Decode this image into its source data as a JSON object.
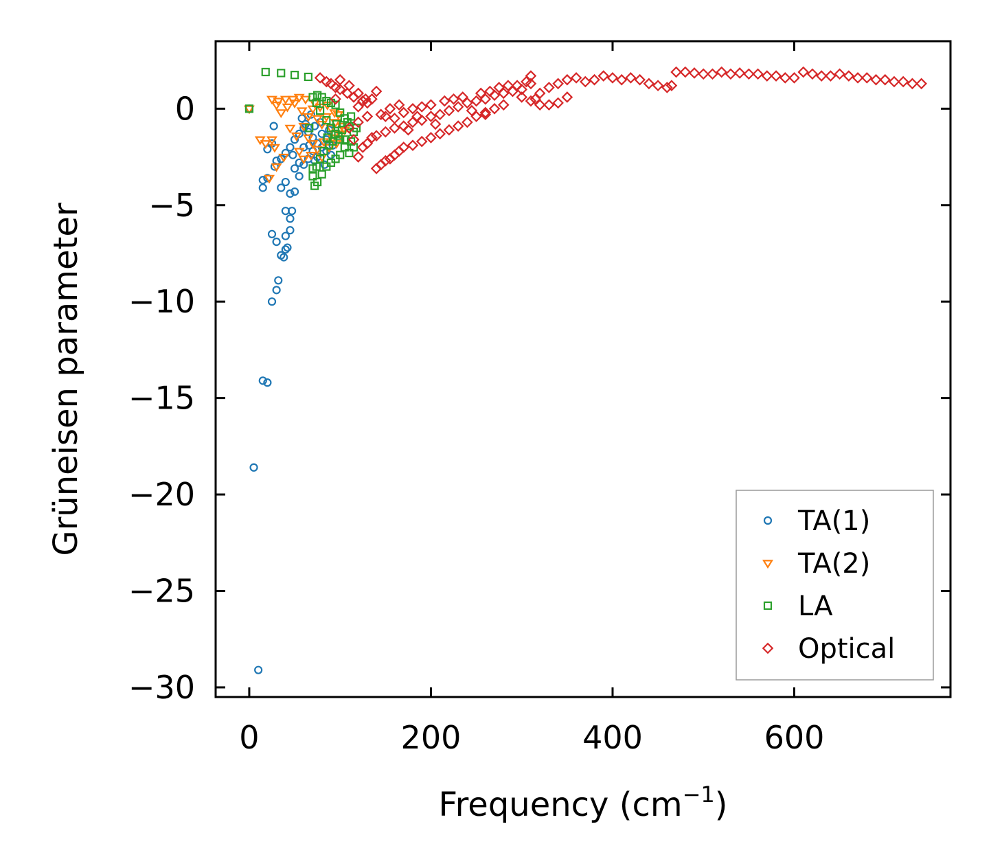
{
  "chart_data": {
    "type": "scatter",
    "title": "",
    "xlabel": "Frequency (cm",
    "xlabel_sup": "−1",
    "xlabel_end": ")",
    "ylabel": "Grüneisen parameter",
    "xlim": [
      -37,
      772
    ],
    "ylim": [
      -30.5,
      3.5
    ],
    "x_ticks": [
      0,
      200,
      400,
      600
    ],
    "x_tick_labels": [
      "0",
      "200",
      "400",
      "600"
    ],
    "y_ticks": [
      0,
      -5,
      -10,
      -15,
      -20,
      -25,
      -30
    ],
    "y_tick_labels": [
      "0",
      "−5",
      "−10",
      "−15",
      "−20",
      "−25",
      "−30"
    ],
    "legend_position": "bottom-right",
    "series": [
      {
        "name": "TA(1)",
        "marker": "circle",
        "color": "#1f77b4",
        "points": [
          [
            0,
            0
          ],
          [
            5,
            -18.6
          ],
          [
            10,
            -29.1
          ],
          [
            15,
            -14.1
          ],
          [
            20,
            -14.2
          ],
          [
            25,
            -10.0
          ],
          [
            30,
            -9.4
          ],
          [
            32,
            -8.9
          ],
          [
            25,
            -6.5
          ],
          [
            30,
            -6.9
          ],
          [
            35,
            -7.6
          ],
          [
            38,
            -7.7
          ],
          [
            40,
            -7.3
          ],
          [
            42,
            -7.2
          ],
          [
            40,
            -6.6
          ],
          [
            45,
            -6.3
          ],
          [
            47,
            -5.3
          ],
          [
            40,
            -5.3
          ],
          [
            45,
            -5.7
          ],
          [
            15,
            -4.1
          ],
          [
            15,
            -3.7
          ],
          [
            20,
            -3.6
          ],
          [
            28,
            -3.0
          ],
          [
            30,
            -2.7
          ],
          [
            35,
            -4.1
          ],
          [
            40,
            -3.8
          ],
          [
            45,
            -4.4
          ],
          [
            50,
            -4.3
          ],
          [
            55,
            -3.5
          ],
          [
            20,
            -2.1
          ],
          [
            25,
            -1.8
          ],
          [
            27,
            -0.9
          ],
          [
            35,
            -2.6
          ],
          [
            40,
            -2.3
          ],
          [
            45,
            -2.0
          ],
          [
            50,
            -1.6
          ],
          [
            55,
            -1.3
          ],
          [
            60,
            -1.0
          ],
          [
            65,
            -1.2
          ],
          [
            70,
            -1.5
          ],
          [
            75,
            -1.8
          ],
          [
            80,
            -2.0
          ],
          [
            85,
            -2.2
          ],
          [
            90,
            -2.4
          ],
          [
            60,
            -2.9
          ],
          [
            65,
            -2.6
          ],
          [
            70,
            -2.2
          ],
          [
            75,
            -2.5
          ],
          [
            80,
            -1.3
          ],
          [
            85,
            -1.6
          ],
          [
            58,
            -0.5
          ],
          [
            62,
            -0.8
          ],
          [
            68,
            -0.3
          ],
          [
            72,
            -0.9
          ],
          [
            78,
            -0.7
          ],
          [
            88,
            -1.1
          ],
          [
            50,
            -3.1
          ],
          [
            55,
            -2.8
          ],
          [
            60,
            -2.0
          ],
          [
            66,
            -1.9
          ],
          [
            72,
            -2.7
          ],
          [
            83,
            -2.9
          ],
          [
            92,
            -1.9
          ],
          [
            48,
            -2.4
          ]
        ]
      },
      {
        "name": "TA(2)",
        "marker": "triangle-down",
        "color": "#ff7f0e",
        "points": [
          [
            0,
            0
          ],
          [
            12,
            -1.6
          ],
          [
            18,
            -1.8
          ],
          [
            25,
            -1.6
          ],
          [
            28,
            -2.0
          ],
          [
            32,
            0.4
          ],
          [
            40,
            0.5
          ],
          [
            48,
            0.5
          ],
          [
            55,
            0.6
          ],
          [
            62,
            0.5
          ],
          [
            25,
            0.5
          ],
          [
            30,
            0.2
          ],
          [
            35,
            -0.2
          ],
          [
            42,
            0.1
          ],
          [
            50,
            0.3
          ],
          [
            58,
            -0.1
          ],
          [
            65,
            -0.4
          ],
          [
            70,
            0.0
          ],
          [
            75,
            -0.5
          ],
          [
            80,
            -0.8
          ],
          [
            85,
            -0.4
          ],
          [
            90,
            -1.0
          ],
          [
            95,
            -0.7
          ],
          [
            100,
            -1.3
          ],
          [
            65,
            -1.5
          ],
          [
            70,
            -1.8
          ],
          [
            75,
            -2.1
          ],
          [
            82,
            -1.7
          ],
          [
            88,
            -2.0
          ],
          [
            92,
            -1.5
          ],
          [
            98,
            -0.3
          ],
          [
            102,
            -0.9
          ],
          [
            45,
            -1.0
          ],
          [
            52,
            -1.4
          ],
          [
            60,
            -0.9
          ],
          [
            72,
            0.3
          ],
          [
            78,
            0.1
          ],
          [
            86,
            0.2
          ],
          [
            94,
            -0.2
          ],
          [
            105,
            -1.1
          ],
          [
            22,
            -3.6
          ],
          [
            30,
            -3.0
          ],
          [
            38,
            -2.5
          ],
          [
            55,
            -2.2
          ],
          [
            60,
            -2.6
          ],
          [
            68,
            -2.4
          ],
          [
            80,
            -2.5
          ],
          [
            96,
            -1.8
          ]
        ]
      },
      {
        "name": "LA",
        "marker": "square",
        "color": "#2ca02c",
        "points": [
          [
            0,
            0
          ],
          [
            18,
            1.9
          ],
          [
            35,
            1.85
          ],
          [
            50,
            1.75
          ],
          [
            65,
            1.65
          ],
          [
            75,
            0.7
          ],
          [
            80,
            0.6
          ],
          [
            85,
            0.4
          ],
          [
            90,
            0.3
          ],
          [
            95,
            0.2
          ],
          [
            100,
            -0.2
          ],
          [
            105,
            -0.5
          ],
          [
            110,
            -0.9
          ],
          [
            115,
            -1.2
          ],
          [
            85,
            -0.6
          ],
          [
            90,
            -1.0
          ],
          [
            95,
            -1.3
          ],
          [
            100,
            -1.6
          ],
          [
            105,
            -2.0
          ],
          [
            110,
            -2.3
          ],
          [
            115,
            -2.0
          ],
          [
            70,
            -3.5
          ],
          [
            72,
            -4.0
          ],
          [
            75,
            -3.8
          ],
          [
            80,
            -3.4
          ],
          [
            85,
            -3.0
          ],
          [
            90,
            -2.8
          ],
          [
            95,
            -2.6
          ],
          [
            78,
            -2.6
          ],
          [
            82,
            -2.2
          ],
          [
            88,
            -1.9
          ],
          [
            92,
            -1.7
          ],
          [
            98,
            -1.4
          ],
          [
            102,
            -1.1
          ],
          [
            108,
            -0.7
          ],
          [
            112,
            -0.4
          ],
          [
            70,
            0.6
          ],
          [
            74,
            0.3
          ],
          [
            78,
            -0.1
          ],
          [
            66,
            -1.0
          ],
          [
            70,
            -3.1
          ],
          [
            74,
            -3.0
          ],
          [
            100,
            -2.4
          ],
          [
            96,
            -0.8
          ],
          [
            86,
            -1.5
          ],
          [
            106,
            -1.6
          ],
          [
            112,
            -1.7
          ],
          [
            118,
            -1.0
          ]
        ]
      },
      {
        "name": "Optical",
        "marker": "diamond",
        "color": "#d62728",
        "points": [
          [
            78,
            1.6
          ],
          [
            85,
            1.4
          ],
          [
            90,
            1.3
          ],
          [
            95,
            1.1
          ],
          [
            100,
            1.0
          ],
          [
            108,
            0.8
          ],
          [
            115,
            0.6
          ],
          [
            125,
            0.4
          ],
          [
            130,
            0.3
          ],
          [
            140,
            0.9
          ],
          [
            135,
            0.5
          ],
          [
            100,
            1.5
          ],
          [
            110,
            1.2
          ],
          [
            120,
            0.8
          ],
          [
            128,
            0.5
          ],
          [
            95,
            0.5
          ],
          [
            120,
            0.1
          ],
          [
            145,
            -0.3
          ],
          [
            150,
            -0.4
          ],
          [
            160,
            -0.5
          ],
          [
            170,
            -0.2
          ],
          [
            180,
            0.0
          ],
          [
            190,
            0.1
          ],
          [
            200,
            0.2
          ],
          [
            140,
            -3.1
          ],
          [
            145,
            -2.9
          ],
          [
            150,
            -2.7
          ],
          [
            155,
            -2.6
          ],
          [
            160,
            -2.4
          ],
          [
            165,
            -2.2
          ],
          [
            170,
            -2.0
          ],
          [
            180,
            -1.9
          ],
          [
            190,
            -1.7
          ],
          [
            200,
            -1.5
          ],
          [
            210,
            -1.3
          ],
          [
            220,
            -1.1
          ],
          [
            230,
            -0.9
          ],
          [
            240,
            -0.7
          ],
          [
            250,
            -0.4
          ],
          [
            260,
            -0.2
          ],
          [
            120,
            -2.5
          ],
          [
            125,
            -2.0
          ],
          [
            130,
            -1.8
          ],
          [
            135,
            -1.5
          ],
          [
            140,
            -1.4
          ],
          [
            150,
            -1.2
          ],
          [
            160,
            -1.0
          ],
          [
            170,
            -0.9
          ],
          [
            180,
            -0.7
          ],
          [
            190,
            -0.6
          ],
          [
            200,
            -0.4
          ],
          [
            210,
            -0.3
          ],
          [
            220,
            -0.1
          ],
          [
            230,
            0.1
          ],
          [
            240,
            0.3
          ],
          [
            250,
            0.4
          ],
          [
            260,
            0.5
          ],
          [
            270,
            0.7
          ],
          [
            280,
            0.8
          ],
          [
            290,
            0.9
          ],
          [
            300,
            1.0
          ],
          [
            305,
            1.4
          ],
          [
            310,
            1.3
          ],
          [
            315,
            0.5
          ],
          [
            320,
            0.8
          ],
          [
            330,
            1.1
          ],
          [
            340,
            1.3
          ],
          [
            350,
            1.5
          ],
          [
            360,
            1.6
          ],
          [
            370,
            1.4
          ],
          [
            380,
            1.5
          ],
          [
            390,
            1.7
          ],
          [
            400,
            1.6
          ],
          [
            410,
            1.5
          ],
          [
            420,
            1.6
          ],
          [
            430,
            1.5
          ],
          [
            440,
            1.3
          ],
          [
            450,
            1.2
          ],
          [
            460,
            1.1
          ],
          [
            465,
            1.2
          ],
          [
            470,
            1.9
          ],
          [
            480,
            1.9
          ],
          [
            490,
            1.85
          ],
          [
            500,
            1.8
          ],
          [
            510,
            1.8
          ],
          [
            520,
            1.9
          ],
          [
            530,
            1.8
          ],
          [
            540,
            1.85
          ],
          [
            550,
            1.8
          ],
          [
            560,
            1.8
          ],
          [
            570,
            1.7
          ],
          [
            580,
            1.7
          ],
          [
            590,
            1.6
          ],
          [
            600,
            1.6
          ],
          [
            610,
            1.9
          ],
          [
            620,
            1.8
          ],
          [
            630,
            1.7
          ],
          [
            640,
            1.7
          ],
          [
            650,
            1.8
          ],
          [
            660,
            1.7
          ],
          [
            670,
            1.6
          ],
          [
            680,
            1.6
          ],
          [
            690,
            1.5
          ],
          [
            700,
            1.5
          ],
          [
            710,
            1.4
          ],
          [
            720,
            1.4
          ],
          [
            730,
            1.3
          ],
          [
            740,
            1.3
          ],
          [
            300,
            0.6
          ],
          [
            310,
            0.4
          ],
          [
            320,
            0.2
          ],
          [
            330,
            0.2
          ],
          [
            340,
            0.3
          ],
          [
            350,
            0.6
          ],
          [
            280,
            0.2
          ],
          [
            270,
            0.0
          ],
          [
            260,
            -0.3
          ],
          [
            110,
            -1.0
          ],
          [
            115,
            -1.6
          ],
          [
            120,
            -0.7
          ],
          [
            130,
            -0.4
          ],
          [
            155,
            0.0
          ],
          [
            165,
            0.2
          ],
          [
            175,
            -1.1
          ],
          [
            185,
            -0.4
          ],
          [
            205,
            -0.8
          ],
          [
            215,
            0.4
          ],
          [
            225,
            0.5
          ],
          [
            235,
            0.6
          ],
          [
            245,
            -0.1
          ],
          [
            255,
            0.8
          ],
          [
            265,
            0.9
          ],
          [
            275,
            1.1
          ],
          [
            285,
            1.2
          ],
          [
            295,
            1.2
          ],
          [
            310,
            1.7
          ]
        ]
      }
    ]
  }
}
